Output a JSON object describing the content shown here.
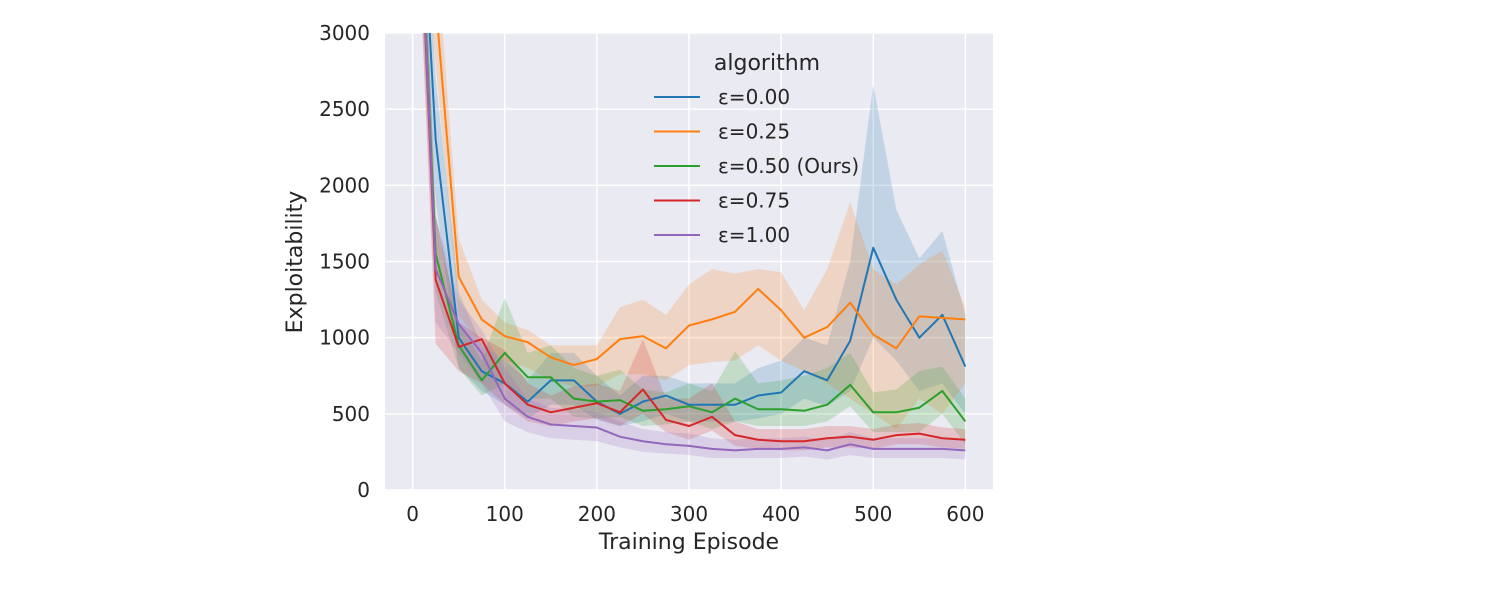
{
  "chart_data": {
    "type": "line",
    "xlabel": "Training Episode",
    "ylabel": "Exploitability",
    "xlim": [
      -30,
      630
    ],
    "ylim": [
      0,
      3000
    ],
    "x_ticks": [
      0,
      100,
      200,
      300,
      400,
      500,
      600
    ],
    "y_ticks": [
      0,
      500,
      1000,
      1500,
      2000,
      2500,
      3000
    ],
    "grid": true,
    "background_color": "#eaeaf2",
    "legend": {
      "title": "algorithm",
      "placement": "top-center"
    },
    "x": [
      0,
      25,
      50,
      75,
      100,
      125,
      150,
      175,
      200,
      225,
      250,
      275,
      300,
      325,
      350,
      375,
      400,
      425,
      450,
      475,
      500,
      525,
      550,
      575,
      600
    ],
    "series": [
      {
        "name": "ε=0.00",
        "color": "#1f77b4",
        "values": [
          5000,
          2300,
          1000,
          780,
          700,
          580,
          720,
          720,
          580,
          500,
          580,
          620,
          560,
          560,
          560,
          620,
          640,
          780,
          720,
          980,
          1590,
          1250,
          1000,
          1150,
          810
        ],
        "lower": [
          4500,
          1900,
          800,
          650,
          560,
          470,
          560,
          560,
          460,
          420,
          450,
          500,
          450,
          450,
          450,
          470,
          500,
          600,
          550,
          650,
          1000,
          850,
          650,
          700,
          500
        ],
        "upper": [
          5500,
          2700,
          1300,
          950,
          850,
          720,
          900,
          900,
          750,
          620,
          750,
          750,
          700,
          700,
          700,
          800,
          850,
          1000,
          950,
          1500,
          2660,
          1840,
          1520,
          1700,
          1150
        ]
      },
      {
        "name": "ε=0.25",
        "color": "#ff7f0e",
        "values": [
          5000,
          3200,
          1400,
          1120,
          1010,
          970,
          870,
          820,
          860,
          990,
          1010,
          930,
          1080,
          1120,
          1170,
          1320,
          1180,
          1000,
          1070,
          1230,
          1020,
          930,
          1140,
          1130,
          1120
        ],
        "lower": [
          4500,
          2800,
          1150,
          950,
          850,
          800,
          720,
          680,
          680,
          760,
          760,
          720,
          820,
          840,
          850,
          950,
          850,
          780,
          700,
          600,
          500,
          400,
          600,
          500,
          700
        ],
        "upper": [
          5500,
          3600,
          1650,
          1250,
          1100,
          1050,
          950,
          950,
          950,
          1200,
          1250,
          1150,
          1350,
          1450,
          1420,
          1450,
          1430,
          1180,
          1450,
          1890,
          1450,
          1350,
          1480,
          1570,
          1200
        ]
      },
      {
        "name": "ε=0.50 (Ours)",
        "color": "#2ca02c",
        "values": [
          5000,
          1550,
          950,
          720,
          900,
          740,
          740,
          600,
          580,
          590,
          520,
          530,
          550,
          510,
          600,
          530,
          530,
          520,
          560,
          690,
          510,
          510,
          540,
          650,
          450
        ],
        "lower": [
          4500,
          1300,
          800,
          620,
          700,
          600,
          600,
          480,
          470,
          480,
          420,
          430,
          450,
          400,
          450,
          420,
          420,
          420,
          450,
          550,
          380,
          380,
          380,
          500,
          300
        ],
        "upper": [
          5500,
          1800,
          1100,
          850,
          1260,
          900,
          950,
          800,
          750,
          790,
          660,
          640,
          700,
          650,
          910,
          700,
          720,
          750,
          800,
          900,
          640,
          660,
          780,
          810,
          600
        ]
      },
      {
        "name": "ε=0.75",
        "color": "#d62728",
        "values": [
          5000,
          1380,
          940,
          990,
          700,
          560,
          510,
          540,
          570,
          510,
          660,
          460,
          420,
          480,
          360,
          330,
          320,
          320,
          340,
          350,
          330,
          360,
          370,
          340,
          330
        ],
        "lower": [
          4500,
          960,
          780,
          700,
          560,
          450,
          420,
          450,
          470,
          420,
          500,
          380,
          330,
          390,
          290,
          270,
          260,
          260,
          280,
          280,
          270,
          300,
          300,
          280,
          270
        ],
        "upper": [
          5500,
          1800,
          1100,
          1000,
          920,
          700,
          620,
          680,
          700,
          650,
          990,
          600,
          600,
          700,
          450,
          400,
          400,
          400,
          420,
          420,
          400,
          430,
          440,
          410,
          400
        ]
      },
      {
        "name": "ε=1.00",
        "color": "#9467bd",
        "values": [
          5000,
          1450,
          1090,
          900,
          600,
          480,
          430,
          420,
          410,
          350,
          320,
          300,
          290,
          270,
          260,
          270,
          270,
          280,
          260,
          300,
          270,
          270,
          270,
          270,
          260
        ],
        "lower": [
          4500,
          1100,
          900,
          700,
          450,
          380,
          340,
          330,
          320,
          280,
          250,
          240,
          230,
          210,
          210,
          210,
          210,
          220,
          200,
          230,
          210,
          210,
          210,
          210,
          200
        ],
        "upper": [
          5500,
          1800,
          1250,
          1050,
          800,
          600,
          540,
          530,
          510,
          450,
          400,
          380,
          370,
          340,
          330,
          340,
          340,
          350,
          330,
          380,
          340,
          340,
          340,
          340,
          330
        ]
      }
    ]
  }
}
